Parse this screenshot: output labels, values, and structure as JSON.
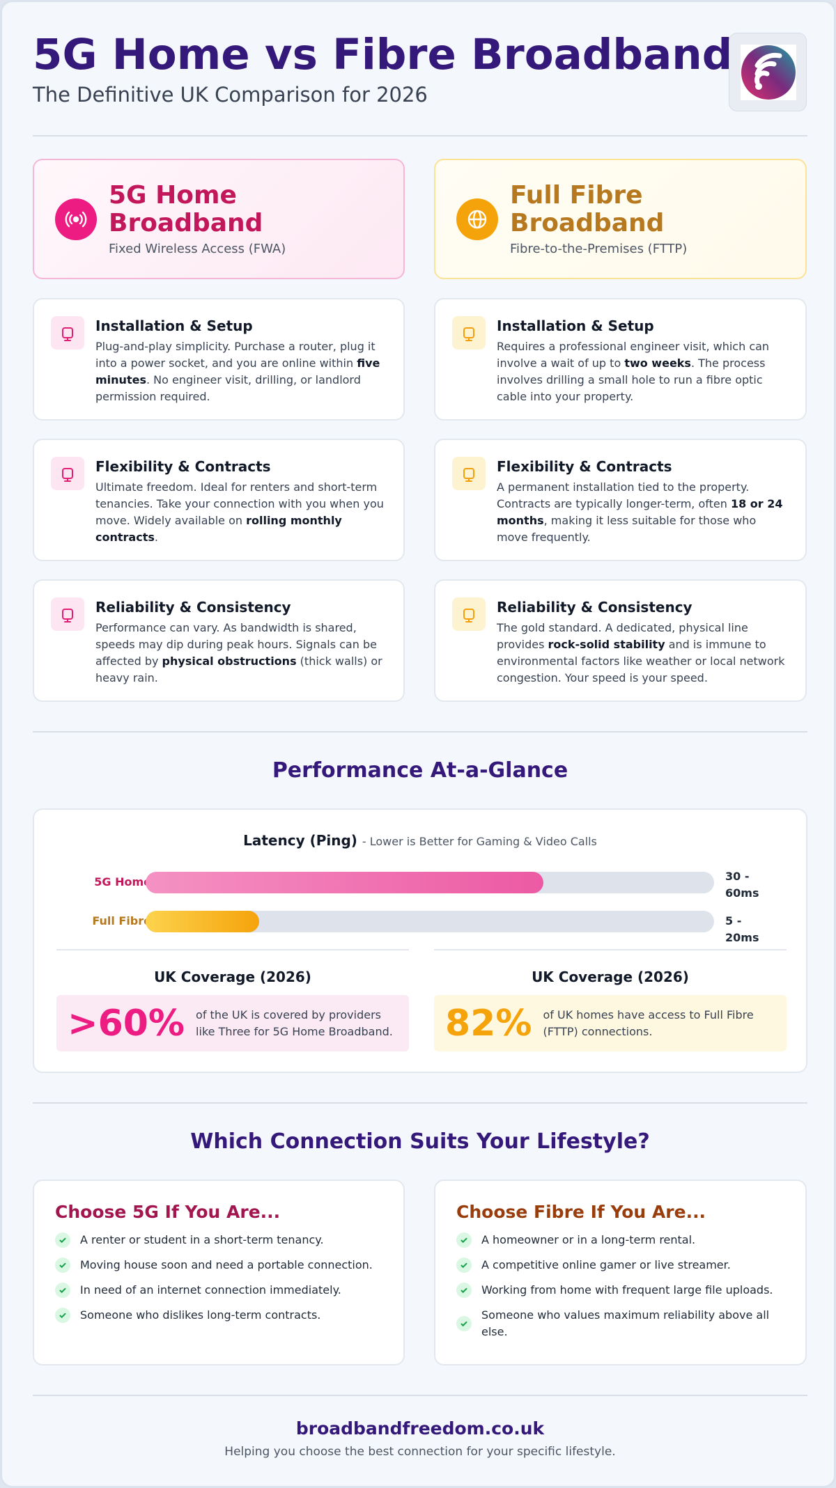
{
  "header": {
    "title": "5G Home vs Fibre Broadband",
    "subtitle": "The Definitive UK Comparison for 2026"
  },
  "columns": [
    {
      "title": "5G Home Broadband",
      "subtitle": "Fixed Wireless Access (FWA)",
      "features": [
        {
          "heading": "Installation & Setup",
          "text": [
            "Plug-and-play simplicity. Purchase a router, plug it into a power socket, and you are online within ",
            "five minutes",
            ". No engineer visit, drilling, or landlord permission required."
          ]
        },
        {
          "heading": "Flexibility & Contracts",
          "text": [
            "Ultimate freedom. Ideal for renters and short-term tenancies. Take your connection with you when you move. Widely available on ",
            "rolling monthly contracts",
            "."
          ]
        },
        {
          "heading": "Reliability & Consistency",
          "text": [
            "Performance can vary. As bandwidth is shared, speeds may dip during peak hours. Signals can be affected by ",
            "physical obstructions",
            " (thick walls) or heavy rain."
          ]
        }
      ]
    },
    {
      "title": "Full Fibre Broadband",
      "subtitle": "Fibre-to-the-Premises (FTTP)",
      "features": [
        {
          "heading": "Installation & Setup",
          "text": [
            "Requires a professional engineer visit, which can involve a wait of up to ",
            "two weeks",
            ". The process involves drilling a small hole to run a fibre optic cable into your property."
          ]
        },
        {
          "heading": "Flexibility & Contracts",
          "text": [
            "A permanent installation tied to the property. Contracts are typically longer-term, often ",
            "18 or 24 months",
            ", making it less suitable for those who move frequently."
          ]
        },
        {
          "heading": "Reliability & Consistency",
          "text": [
            "The gold standard. A dedicated, physical line provides ",
            "rock-solid stability",
            " and is immune to environmental factors like weather or local network congestion. Your speed is your speed."
          ]
        }
      ]
    }
  ],
  "performance": {
    "title": "Performance At-a-Glance",
    "latency": {
      "label": "Latency (Ping)",
      "note": "- Lower is Better for Gaming & Video Calls",
      "rows": [
        {
          "name": "5G Home",
          "value": "30 - 60ms"
        },
        {
          "name": "Full Fibre",
          "value": "5 - 20ms"
        }
      ]
    },
    "coverage": [
      {
        "title": "UK Coverage (2026)",
        "figure": ">60%",
        "text": "of the UK is covered by providers like Three for 5G Home Broadband."
      },
      {
        "title": "UK Coverage (2026)",
        "figure": "82%",
        "text": "of UK homes have access to Full Fibre (FTTP) connections."
      }
    ]
  },
  "lifestyle": {
    "title": "Which Connection Suits Your Lifestyle?",
    "cards": [
      {
        "heading": "Choose 5G If You Are...",
        "items": [
          "A renter or student in a short-term tenancy.",
          "Moving house soon and need a portable connection.",
          "In need of an internet connection immediately.",
          "Someone who dislikes long-term contracts."
        ]
      },
      {
        "heading": "Choose Fibre If You Are...",
        "items": [
          "A homeowner or in a long-term rental.",
          "A competitive online gamer or live streamer.",
          "Working from home with frequent large file uploads.",
          "Someone who values maximum reliability above all else."
        ]
      }
    ]
  },
  "footer": {
    "site": "broadbandfreedom.co.uk",
    "tagline": "Helping you choose the best connection for your specific lifestyle."
  }
}
